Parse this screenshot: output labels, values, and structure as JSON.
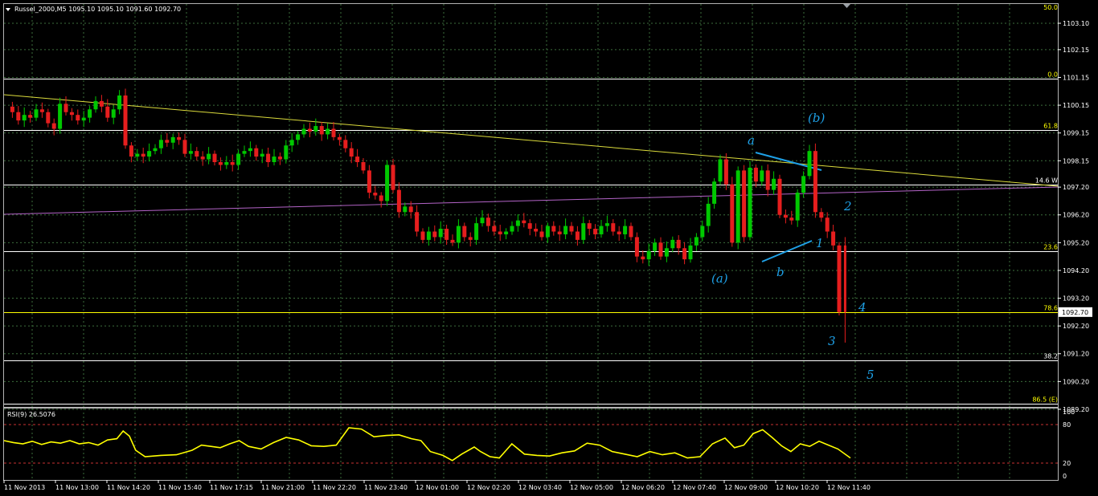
{
  "header": {
    "symbol_line": "Russel_2000,M5  1095.10 1095.10 1091.60 1092.70",
    "top_level_label": "50.0"
  },
  "price_axis": {
    "labels": [
      "1103.10",
      "1102.15",
      "1101.15",
      "1100.15",
      "1099.15",
      "1098.15",
      "1097.20",
      "1096.20",
      "1095.20",
      "1094.20",
      "1093.20",
      "1092.20",
      "1091.20",
      "1090.20",
      "1089.20"
    ],
    "current_price": "1092.70"
  },
  "levels": [
    {
      "label": "0.0",
      "price": 1101.1,
      "color": "#ffffff",
      "label_color": "#ffff00"
    },
    {
      "label": "61.8",
      "price": 1099.25,
      "color": "#ffffff",
      "label_color": "#ffff00"
    },
    {
      "label": "14.6 W",
      "price": 1097.3,
      "color": "#ffffff",
      "label_color": "#ffffff"
    },
    {
      "label": "23.6",
      "price": 1094.9,
      "color": "#ffffff",
      "label_color": "#ffff00"
    },
    {
      "label": "78.6",
      "price": 1092.7,
      "color": "#ffff00",
      "label_color": "#ffff00"
    },
    {
      "label": "38.2",
      "price": 1090.95,
      "color": "#ffffff",
      "label_color": "#ffffff"
    },
    {
      "label": "86.5 (E)",
      "price": 1089.4,
      "color": "#ffffff",
      "label_color": "#ffff00"
    }
  ],
  "wave_labels": [
    {
      "text": "(b)",
      "color": "#1ea0e6"
    },
    {
      "text": "a",
      "color": "#1ea0e6"
    },
    {
      "text": "2",
      "color": "#1ea0e6"
    },
    {
      "text": "1",
      "color": "#1ea0e6"
    },
    {
      "text": "(a)",
      "color": "#1ea0e6"
    },
    {
      "text": "b",
      "color": "#1ea0e6"
    },
    {
      "text": "4",
      "color": "#1ea0e6"
    },
    {
      "text": "3",
      "color": "#1ea0e6"
    },
    {
      "text": "5",
      "color": "#1ea0e6"
    }
  ],
  "rsi": {
    "label": "RSI(9) 26.5076",
    "axis_labels": [
      "100",
      "80",
      "20",
      "0"
    ]
  },
  "time_axis": {
    "labels": [
      "11 Nov 2013",
      "11 Nov 13:00",
      "11 Nov 14:20",
      "11 Nov 15:40",
      "11 Nov 17:15",
      "11 Nov 21:00",
      "11 Nov 22:20",
      "11 Nov 23:40",
      "12 Nov 01:00",
      "12 Nov 02:20",
      "12 Nov 03:40",
      "12 Nov 05:00",
      "12 Nov 06:20",
      "12 Nov 07:40",
      "12 Nov 09:00",
      "12 Nov 10:20",
      "12 Nov 11:40"
    ]
  },
  "colors": {
    "background": "#000000",
    "grid": "#3c6e3c",
    "bull": "#00c800",
    "bear": "#e61e1e",
    "trendline": "#dcdc3c",
    "ma_line": "#b464c8",
    "rsi_line": "#ffff00",
    "rsi_levels": "#c83232",
    "axis_text": "#ffffff"
  },
  "chart_data": {
    "type": "candlestick",
    "symbol": "Russel_2000",
    "timeframe": "M5",
    "ohlc_header": {
      "open": 1095.1,
      "high": 1095.1,
      "low": 1091.6,
      "close": 1092.7
    },
    "ylim": [
      1088.8,
      1103.6
    ],
    "price_path": [
      [
        0,
        1100.1
      ],
      [
        1,
        1099.9
      ],
      [
        2,
        1099.6
      ],
      [
        3,
        1099.8
      ],
      [
        4,
        1099.7
      ],
      [
        5,
        1100.0
      ],
      [
        6,
        1099.9
      ],
      [
        7,
        1099.5
      ],
      [
        8,
        1099.3
      ],
      [
        9,
        1100.2
      ],
      [
        10,
        1099.9
      ],
      [
        11,
        1099.8
      ],
      [
        12,
        1099.6
      ],
      [
        13,
        1099.7
      ],
      [
        14,
        1100.0
      ],
      [
        15,
        1100.3
      ],
      [
        16,
        1100.1
      ],
      [
        17,
        1099.7
      ],
      [
        18,
        1100.0
      ],
      [
        19,
        1100.5
      ],
      [
        20,
        1098.7
      ],
      [
        21,
        1098.3
      ],
      [
        22,
        1098.4
      ],
      [
        23,
        1098.3
      ],
      [
        24,
        1098.5
      ],
      [
        25,
        1098.6
      ],
      [
        26,
        1098.9
      ],
      [
        27,
        1098.8
      ],
      [
        28,
        1099.0
      ],
      [
        29,
        1098.9
      ],
      [
        30,
        1098.4
      ],
      [
        31,
        1098.5
      ],
      [
        32,
        1098.3
      ],
      [
        33,
        1098.2
      ],
      [
        34,
        1098.4
      ],
      [
        35,
        1098.1
      ],
      [
        36,
        1098.0
      ],
      [
        37,
        1098.1
      ],
      [
        38,
        1098.0
      ],
      [
        39,
        1098.4
      ],
      [
        40,
        1098.5
      ],
      [
        41,
        1098.6
      ],
      [
        42,
        1098.3
      ],
      [
        43,
        1098.4
      ],
      [
        44,
        1098.1
      ],
      [
        45,
        1098.3
      ],
      [
        46,
        1098.2
      ],
      [
        47,
        1098.7
      ],
      [
        48,
        1098.9
      ],
      [
        49,
        1099.1
      ],
      [
        50,
        1099.3
      ],
      [
        51,
        1099.2
      ],
      [
        52,
        1099.4
      ],
      [
        53,
        1099.1
      ],
      [
        54,
        1099.3
      ],
      [
        55,
        1099.0
      ],
      [
        56,
        1098.9
      ],
      [
        57,
        1098.6
      ],
      [
        58,
        1098.3
      ],
      [
        59,
        1098.1
      ],
      [
        60,
        1097.8
      ],
      [
        61,
        1097.0
      ],
      [
        62,
        1096.9
      ],
      [
        63,
        1096.7
      ],
      [
        64,
        1098.0
      ],
      [
        65,
        1097.1
      ],
      [
        66,
        1096.3
      ],
      [
        67,
        1096.5
      ],
      [
        68,
        1096.3
      ],
      [
        69,
        1095.6
      ],
      [
        70,
        1095.3
      ],
      [
        71,
        1095.6
      ],
      [
        72,
        1095.4
      ],
      [
        73,
        1095.7
      ],
      [
        74,
        1095.3
      ],
      [
        75,
        1095.2
      ],
      [
        76,
        1095.8
      ],
      [
        77,
        1095.4
      ],
      [
        78,
        1095.3
      ],
      [
        79,
        1095.9
      ],
      [
        80,
        1096.1
      ],
      [
        81,
        1095.8
      ],
      [
        82,
        1095.6
      ],
      [
        83,
        1095.5
      ],
      [
        84,
        1095.6
      ],
      [
        85,
        1095.8
      ],
      [
        86,
        1096.0
      ],
      [
        87,
        1095.9
      ],
      [
        88,
        1095.7
      ],
      [
        89,
        1095.6
      ],
      [
        90,
        1095.4
      ],
      [
        91,
        1095.8
      ],
      [
        92,
        1095.6
      ],
      [
        93,
        1095.5
      ],
      [
        94,
        1095.8
      ],
      [
        95,
        1095.6
      ],
      [
        96,
        1095.3
      ],
      [
        97,
        1095.9
      ],
      [
        98,
        1095.7
      ],
      [
        99,
        1095.5
      ],
      [
        100,
        1095.8
      ],
      [
        101,
        1095.9
      ],
      [
        102,
        1095.6
      ],
      [
        103,
        1095.5
      ],
      [
        104,
        1095.8
      ],
      [
        105,
        1095.4
      ],
      [
        106,
        1094.7
      ],
      [
        107,
        1094.6
      ],
      [
        108,
        1094.9
      ],
      [
        109,
        1095.2
      ],
      [
        110,
        1094.7
      ],
      [
        111,
        1095.0
      ],
      [
        112,
        1095.3
      ],
      [
        113,
        1095.0
      ],
      [
        114,
        1094.6
      ],
      [
        115,
        1095.1
      ],
      [
        116,
        1095.4
      ],
      [
        117,
        1095.8
      ],
      [
        118,
        1096.6
      ],
      [
        119,
        1097.4
      ],
      [
        120,
        1098.2
      ],
      [
        121,
        1097.3
      ],
      [
        122,
        1095.2
      ],
      [
        123,
        1097.8
      ],
      [
        124,
        1095.4
      ],
      [
        125,
        1097.9
      ],
      [
        126,
        1097.4
      ],
      [
        127,
        1097.8
      ],
      [
        128,
        1097.1
      ],
      [
        129,
        1097.5
      ],
      [
        130,
        1096.2
      ],
      [
        131,
        1096.1
      ],
      [
        132,
        1096.0
      ],
      [
        133,
        1097.0
      ],
      [
        134,
        1097.6
      ],
      [
        135,
        1098.5
      ],
      [
        136,
        1096.3
      ],
      [
        137,
        1096.1
      ],
      [
        138,
        1095.6
      ],
      [
        139,
        1095.1
      ],
      [
        140,
        1092.7
      ]
    ],
    "rsi_series": [
      [
        0,
        55
      ],
      [
        3,
        52
      ],
      [
        6,
        50
      ],
      [
        9,
        54
      ],
      [
        12,
        49
      ],
      [
        15,
        53
      ],
      [
        18,
        51
      ],
      [
        21,
        55
      ],
      [
        24,
        50
      ],
      [
        27,
        52
      ],
      [
        30,
        48
      ],
      [
        33,
        56
      ],
      [
        36,
        58
      ],
      [
        38,
        70
      ],
      [
        40,
        62
      ],
      [
        42,
        40
      ],
      [
        45,
        30
      ],
      [
        50,
        32
      ],
      [
        55,
        33
      ],
      [
        60,
        40
      ],
      [
        63,
        48
      ],
      [
        66,
        46
      ],
      [
        69,
        44
      ],
      [
        72,
        50
      ],
      [
        75,
        55
      ],
      [
        78,
        46
      ],
      [
        82,
        42
      ],
      [
        86,
        52
      ],
      [
        90,
        60
      ],
      [
        94,
        56
      ],
      [
        98,
        47
      ],
      [
        102,
        46
      ],
      [
        106,
        48
      ],
      [
        110,
        75
      ],
      [
        114,
        73
      ],
      [
        118,
        61
      ],
      [
        122,
        63
      ],
      [
        126,
        64
      ],
      [
        130,
        58
      ],
      [
        133,
        55
      ],
      [
        136,
        38
      ],
      [
        140,
        32
      ],
      [
        143,
        24
      ],
      [
        146,
        34
      ],
      [
        150,
        45
      ],
      [
        152,
        38
      ],
      [
        155,
        30
      ],
      [
        158,
        28
      ],
      [
        162,
        50
      ],
      [
        166,
        34
      ],
      [
        170,
        32
      ],
      [
        174,
        31
      ],
      [
        178,
        36
      ],
      [
        182,
        39
      ],
      [
        186,
        51
      ],
      [
        190,
        48
      ],
      [
        194,
        38
      ],
      [
        198,
        34
      ],
      [
        202,
        30
      ],
      [
        206,
        38
      ],
      [
        210,
        33
      ],
      [
        214,
        36
      ],
      [
        218,
        28
      ],
      [
        222,
        30
      ],
      [
        226,
        50
      ],
      [
        230,
        59
      ],
      [
        233,
        44
      ],
      [
        236,
        48
      ],
      [
        239,
        66
      ],
      [
        242,
        72
      ],
      [
        245,
        60
      ],
      [
        248,
        47
      ],
      [
        251,
        38
      ],
      [
        254,
        50
      ],
      [
        257,
        46
      ],
      [
        260,
        54
      ],
      [
        263,
        48
      ],
      [
        266,
        42
      ],
      [
        270,
        28
      ]
    ],
    "rsi_levels": [
      80,
      20
    ]
  }
}
